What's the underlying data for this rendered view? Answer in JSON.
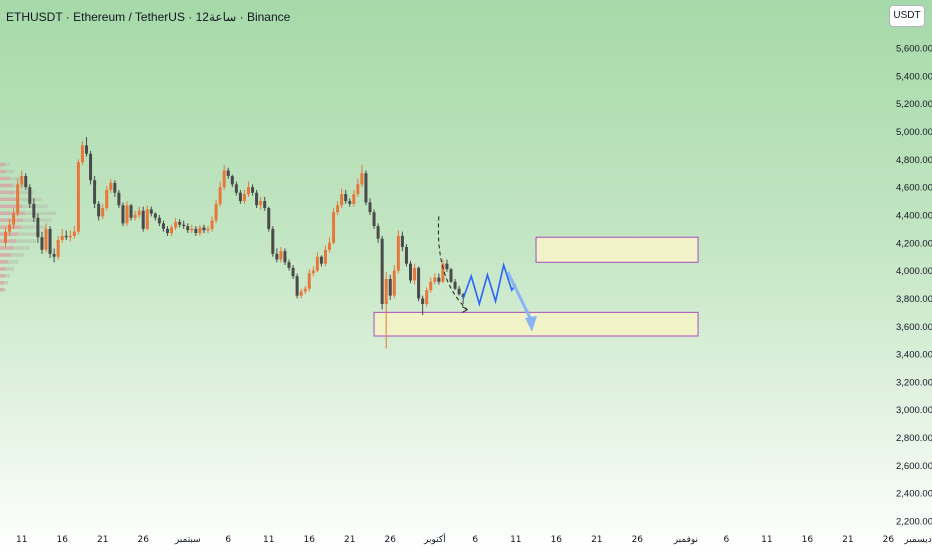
{
  "header": {
    "title": "ETHUSDT · Ethereum / TetherUS · 12ساعة · Binance",
    "currency": "USDT"
  },
  "colors": {
    "up": "#e8773a",
    "down": "#4a4a4a",
    "zone_fill": "#f2f2c8",
    "zone_border": "#a64dbd",
    "projection": "#2962ff",
    "arrow": "#8ab4f8"
  },
  "chart_data": {
    "type": "candlestick",
    "title": "ETHUSDT · Ethereum / TetherUS · 12ساعة · Binance",
    "ylim": [
      2150,
      5800
    ],
    "y_ticks": [
      2200,
      2400,
      2600,
      2800,
      3000,
      3200,
      3400,
      3600,
      3800,
      4000,
      4200,
      4400,
      4600,
      4800,
      5000,
      5200,
      5400,
      5600
    ],
    "y_tick_labels": [
      "2,200.00",
      "2,400.00",
      "2,600.00",
      "2,800.00",
      "3,000.00",
      "3,200.00",
      "3,400.00",
      "3,600.00",
      "3,800.00",
      "4,000.00",
      "4,200.00",
      "4,400.00",
      "4,600.00",
      "4,800.00",
      "5,000.00",
      "5,200.00",
      "5,400.00",
      "5,600.00"
    ],
    "x_ticks": [
      {
        "label": "11",
        "bar": 4
      },
      {
        "label": "16",
        "bar": 14
      },
      {
        "label": "21",
        "bar": 24
      },
      {
        "label": "26",
        "bar": 34
      },
      {
        "label": "سبتمبر",
        "bar": 45
      },
      {
        "label": "6",
        "bar": 55
      },
      {
        "label": "11",
        "bar": 65
      },
      {
        "label": "16",
        "bar": 75
      },
      {
        "label": "21",
        "bar": 85
      },
      {
        "label": "26",
        "bar": 95
      },
      {
        "label": "أكتوبر",
        "bar": 106
      },
      {
        "label": "6",
        "bar": 116
      },
      {
        "label": "11",
        "bar": 126
      },
      {
        "label": "16",
        "bar": 136
      },
      {
        "label": "21",
        "bar": 146
      },
      {
        "label": "26",
        "bar": 156
      },
      {
        "label": "نوفمبر",
        "bar": 168
      },
      {
        "label": "6",
        "bar": 178
      },
      {
        "label": "11",
        "bar": 188
      },
      {
        "label": "16",
        "bar": 198
      },
      {
        "label": "21",
        "bar": 208
      },
      {
        "label": "26",
        "bar": 218
      },
      {
        "label": "ديسمبر",
        "bar": 228
      }
    ],
    "candles": {
      "open": [
        4200,
        4280,
        4330,
        4410,
        4620,
        4680,
        4600,
        4480,
        4380,
        4240,
        4150,
        4300,
        4120,
        4100,
        4220,
        4250,
        4240,
        4250,
        4280,
        4780,
        4900,
        4840,
        4650,
        4480,
        4390,
        4450,
        4580,
        4630,
        4560,
        4470,
        4340,
        4470,
        4380,
        4400,
        4430,
        4300,
        4440,
        4410,
        4380,
        4340,
        4300,
        4270,
        4310,
        4350,
        4330,
        4320,
        4290,
        4300,
        4270,
        4310,
        4290,
        4300,
        4360,
        4480,
        4600,
        4720,
        4680,
        4620,
        4560,
        4500,
        4550,
        4600,
        4560,
        4470,
        4500,
        4450,
        4300,
        4120,
        4080,
        4140,
        4060,
        4020,
        3960,
        3820,
        3850,
        3870,
        3980,
        4000,
        4100,
        4050,
        4150,
        4200,
        4420,
        4470,
        4550,
        4500,
        4480,
        4550,
        4620,
        4700,
        4490,
        4420,
        4320,
        4230,
        3760,
        3940,
        3820,
        4000,
        4250,
        4170,
        4050,
        3930,
        4020,
        3800,
        3760,
        3860,
        3920,
        3950,
        3920,
        4050,
        4010,
        3920,
        3870,
        3830
      ],
      "close": [
        4280,
        4330,
        4410,
        4620,
        4680,
        4600,
        4480,
        4380,
        4240,
        4150,
        4300,
        4120,
        4100,
        4220,
        4250,
        4240,
        4250,
        4280,
        4780,
        4900,
        4840,
        4650,
        4480,
        4390,
        4450,
        4580,
        4630,
        4560,
        4470,
        4340,
        4470,
        4380,
        4400,
        4430,
        4300,
        4440,
        4410,
        4380,
        4340,
        4300,
        4270,
        4310,
        4350,
        4330,
        4320,
        4290,
        4300,
        4270,
        4310,
        4290,
        4300,
        4360,
        4480,
        4600,
        4720,
        4680,
        4620,
        4560,
        4500,
        4550,
        4600,
        4560,
        4470,
        4500,
        4450,
        4300,
        4120,
        4080,
        4140,
        4060,
        4020,
        3960,
        3820,
        3850,
        3870,
        3980,
        4000,
        4100,
        4050,
        4150,
        4200,
        4420,
        4470,
        4550,
        4500,
        4480,
        4550,
        4620,
        4700,
        4490,
        4420,
        4320,
        4230,
        3760,
        3940,
        3820,
        4000,
        4250,
        4170,
        4050,
        3930,
        4020,
        3800,
        3760,
        3860,
        3920,
        3950,
        3920,
        4050,
        4010,
        3920,
        3870,
        3830,
        3810
      ],
      "high": [
        4310,
        4370,
        4450,
        4660,
        4720,
        4700,
        4620,
        4520,
        4410,
        4280,
        4340,
        4320,
        4160,
        4250,
        4300,
        4290,
        4290,
        4320,
        4800,
        4930,
        4960,
        4860,
        4680,
        4500,
        4480,
        4610,
        4660,
        4650,
        4580,
        4490,
        4500,
        4480,
        4430,
        4460,
        4460,
        4470,
        4460,
        4420,
        4400,
        4360,
        4320,
        4330,
        4380,
        4370,
        4360,
        4340,
        4330,
        4320,
        4330,
        4330,
        4320,
        4390,
        4510,
        4640,
        4760,
        4740,
        4690,
        4640,
        4580,
        4580,
        4640,
        4620,
        4580,
        4530,
        4530,
        4460,
        4320,
        4160,
        4170,
        4160,
        4080,
        4040,
        3980,
        3870,
        3890,
        4010,
        4030,
        4130,
        4110,
        4180,
        4240,
        4450,
        4500,
        4590,
        4580,
        4520,
        4580,
        4660,
        4760,
        4720,
        4520,
        4440,
        4340,
        4250,
        3990,
        3970,
        4040,
        4290,
        4280,
        4190,
        4070,
        4050,
        4030,
        3820,
        3880,
        3950,
        3980,
        3980,
        4080,
        4080,
        4020,
        3940,
        3890,
        3840
      ],
      "low": [
        4170,
        4250,
        4300,
        4390,
        4590,
        4580,
        4450,
        4350,
        4200,
        4120,
        4130,
        4090,
        4060,
        4080,
        4200,
        4220,
        4210,
        4230,
        4260,
        4760,
        4820,
        4620,
        4450,
        4360,
        4370,
        4430,
        4560,
        4530,
        4450,
        4320,
        4320,
        4360,
        4360,
        4380,
        4280,
        4290,
        4390,
        4360,
        4320,
        4280,
        4250,
        4250,
        4290,
        4310,
        4300,
        4270,
        4270,
        4250,
        4250,
        4270,
        4270,
        4280,
        4340,
        4460,
        4580,
        4660,
        4600,
        4540,
        4480,
        4480,
        4530,
        4540,
        4450,
        4440,
        4430,
        4280,
        4100,
        4060,
        4060,
        4040,
        4000,
        3940,
        3800,
        3800,
        3830,
        3850,
        3960,
        3990,
        4030,
        4030,
        4130,
        4190,
        4400,
        4450,
        4480,
        4460,
        4460,
        4530,
        4600,
        4470,
        4400,
        4300,
        4200,
        3720,
        3440,
        3790,
        3800,
        3980,
        4140,
        4030,
        3910,
        3900,
        3780,
        3680,
        3740,
        3840,
        3900,
        3900,
        3910,
        3990,
        3910,
        3860,
        3820,
        3760
      ]
    },
    "zones": [
      {
        "name": "resistance",
        "x_bars": [
          131,
          171
        ],
        "y_range": [
          4060,
          4240
        ]
      },
      {
        "name": "support",
        "x_bars": [
          91,
          171
        ],
        "y_range": [
          3530,
          3700
        ]
      }
    ],
    "projection_path": [
      {
        "bar": 113,
        "y": 3800
      },
      {
        "bar": 115,
        "y": 3960
      },
      {
        "bar": 117,
        "y": 3760
      },
      {
        "bar": 119,
        "y": 3970
      },
      {
        "bar": 121,
        "y": 3780
      },
      {
        "bar": 123,
        "y": 4040
      },
      {
        "bar": 125,
        "y": 3860
      },
      {
        "bar": 126,
        "y": 3900
      }
    ],
    "projection_arrow": {
      "from_bar": 124,
      "from_y": 3990,
      "to_bar": 130,
      "to_y": 3560
    },
    "dashed_curve": [
      {
        "bar": 107,
        "y": 4390
      },
      {
        "bar": 106,
        "y": 3940
      },
      {
        "bar": 114,
        "y": 3720
      }
    ],
    "arrow_marker_bar": 114
  }
}
